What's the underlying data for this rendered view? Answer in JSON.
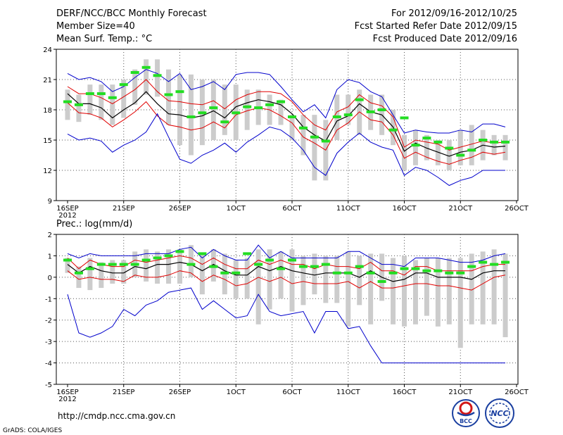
{
  "header": {
    "title": "DERF/NCC/BCC Monthly Forecast",
    "member_size": "Member Size=40",
    "variable": "Mean Surf. Temp.: °C",
    "period": "For 2012/09/16-2012/10/25",
    "fcst_started": "Fcst Started Refer Date 2012/09/15",
    "fcst_produced": "Fcst Produced Date 2012/09/16"
  },
  "footer": {
    "url": "http://cmdp.ncc.cma.gov.cn",
    "grads_credit": "GrADS: COLA/IGES",
    "logo_bcc_text": "BCC",
    "logo_ncc_text": "NCC"
  },
  "colors": {
    "envelope": "#0000cc",
    "spread": "#e00000",
    "mean": "#000000",
    "bar": "#cccccc",
    "obs": "#22dd22"
  },
  "chart_data": [
    {
      "type": "line",
      "name": "temperature",
      "title": "Mean Surf. Temp.: °C",
      "x_start_label": "2012",
      "x_tick_labels": [
        "16SEP",
        "21SEP",
        "26SEP",
        "1OCT",
        "6OCT",
        "11OCT",
        "16OCT",
        "21OCT",
        "26OCT"
      ],
      "x_tick_days": [
        0,
        5,
        10,
        15,
        20,
        25,
        30,
        35,
        40
      ],
      "x": [
        0,
        1,
        2,
        3,
        4,
        5,
        6,
        7,
        8,
        9,
        10,
        11,
        12,
        13,
        14,
        15,
        16,
        17,
        18,
        19,
        20,
        21,
        22,
        23,
        24,
        25,
        26,
        27,
        28,
        29,
        30,
        31,
        32,
        33,
        34,
        35,
        36,
        37,
        38,
        39
      ],
      "ylim": [
        9,
        24
      ],
      "yticks": [
        9,
        12,
        15,
        18,
        21,
        24
      ],
      "series": [
        {
          "name": "max",
          "values": [
            21.6,
            21.0,
            21.2,
            20.8,
            19.8,
            20.3,
            21.2,
            22.0,
            21.6,
            20.8,
            21.6,
            20.0,
            20.3,
            20.8,
            20.0,
            21.5,
            21.7,
            21.7,
            21.5,
            20.3,
            19.0,
            17.8,
            18.5,
            17.2,
            20.0,
            21.0,
            20.7,
            19.8,
            19.3,
            17.5,
            15.7,
            16.0,
            15.8,
            15.7,
            15.7,
            16.0,
            15.8,
            16.6,
            16.6,
            16.3
          ]
        },
        {
          "name": "upper",
          "values": [
            20.3,
            19.6,
            19.6,
            19.2,
            18.6,
            19.3,
            20.0,
            21.0,
            19.8,
            18.9,
            18.8,
            18.6,
            18.5,
            18.9,
            18.1,
            19.0,
            19.5,
            19.8,
            19.8,
            19.6,
            18.8,
            17.5,
            16.5,
            16.0,
            17.8,
            18.3,
            19.5,
            18.7,
            18.4,
            17.3,
            14.3,
            15.0,
            14.8,
            14.6,
            14.0,
            14.3,
            14.6,
            14.9,
            14.7,
            14.8
          ]
        },
        {
          "name": "mean",
          "values": [
            19.6,
            18.6,
            18.6,
            18.2,
            17.2,
            18.0,
            18.7,
            19.8,
            18.6,
            17.6,
            17.5,
            17.2,
            17.4,
            17.9,
            17.2,
            18.3,
            18.7,
            19.0,
            18.8,
            18.5,
            17.6,
            16.3,
            15.5,
            14.9,
            16.9,
            17.4,
            18.6,
            17.8,
            17.5,
            16.3,
            13.9,
            14.7,
            14.2,
            13.8,
            13.4,
            13.8,
            14.0,
            14.5,
            14.3,
            14.4
          ]
        },
        {
          "name": "lower",
          "values": [
            18.7,
            17.7,
            17.6,
            17.2,
            16.3,
            17.0,
            17.8,
            18.8,
            17.4,
            16.5,
            16.3,
            16.0,
            16.2,
            16.8,
            16.2,
            17.5,
            17.9,
            18.2,
            18.0,
            17.4,
            16.7,
            15.3,
            14.7,
            14.0,
            16.0,
            16.7,
            17.8,
            17.0,
            16.8,
            15.5,
            13.2,
            13.8,
            13.3,
            12.9,
            12.6,
            13.0,
            13.3,
            13.8,
            13.6,
            13.8
          ]
        },
        {
          "name": "min",
          "values": [
            15.6,
            15.0,
            15.2,
            14.9,
            13.8,
            14.5,
            15.0,
            15.8,
            17.6,
            15.3,
            13.1,
            12.7,
            13.5,
            14.0,
            14.7,
            13.8,
            14.8,
            15.5,
            16.3,
            16.0,
            15.2,
            14.0,
            12.3,
            11.5,
            13.7,
            14.8,
            15.7,
            14.8,
            14.3,
            14.0,
            11.5,
            12.3,
            12.0,
            11.3,
            10.5,
            11.0,
            11.3,
            12.0,
            12.0,
            12.0
          ]
        }
      ],
      "bars": {
        "name": "member-spread",
        "low": [
          17.0,
          16.8,
          17.5,
          17.0,
          16.5,
          17.2,
          18.5,
          19.5,
          19.3,
          16.5,
          14.5,
          13.5,
          14.5,
          15.0,
          15.5,
          15.0,
          16.0,
          16.5,
          16.5,
          16.5,
          15.0,
          13.5,
          11.0,
          11.0,
          15.0,
          16.5,
          15.5,
          16.0,
          15.5,
          14.5,
          12.0,
          12.5,
          13.0,
          12.5,
          12.0,
          12.5,
          12.5,
          13.0,
          13.5,
          13.0
        ],
        "high": [
          20.0,
          19.5,
          20.5,
          20.5,
          20.5,
          21.0,
          22.0,
          23.0,
          23.0,
          22.0,
          21.5,
          21.5,
          21.0,
          21.0,
          20.5,
          20.5,
          20.0,
          20.0,
          19.5,
          19.0,
          17.5,
          17.5,
          17.5,
          17.0,
          19.5,
          19.5,
          20.0,
          19.5,
          19.5,
          18.0,
          15.5,
          16.0,
          15.5,
          15.0,
          15.0,
          16.0,
          16.5,
          16.0,
          15.5,
          15.5
        ]
      },
      "obs": [
        18.8,
        18.5,
        19.6,
        19.6,
        19.2,
        20.5,
        21.7,
        22.2,
        21.4,
        19.5,
        19.8,
        17.3,
        17.7,
        18.2,
        16.8,
        17.7,
        18.3,
        18.2,
        18.5,
        18.8,
        17.3,
        16.2,
        15.3,
        14.9,
        17.3,
        17.5,
        19.0,
        17.8,
        18.0,
        16.0,
        17.2,
        14.5,
        15.2,
        14.8,
        14.2,
        13.5,
        14.0,
        15.0,
        14.8,
        14.8
      ]
    },
    {
      "type": "line",
      "name": "precipitation",
      "title": "Prec.: log(mm/d)",
      "x_start_label": "2012",
      "x_tick_labels": [
        "16SEP",
        "21SEP",
        "26SEP",
        "1OCT",
        "6OCT",
        "11OCT",
        "16OCT",
        "21OCT",
        "26OCT"
      ],
      "x_tick_days": [
        0,
        5,
        10,
        15,
        20,
        25,
        30,
        35,
        40
      ],
      "x": [
        0,
        1,
        2,
        3,
        4,
        5,
        6,
        7,
        8,
        9,
        10,
        11,
        12,
        13,
        14,
        15,
        16,
        17,
        18,
        19,
        20,
        21,
        22,
        23,
        24,
        25,
        26,
        27,
        28,
        29,
        30,
        31,
        32,
        33,
        34,
        35,
        36,
        37,
        38,
        39
      ],
      "ylim": [
        -5,
        2
      ],
      "yticks": [
        -5,
        -4,
        -3,
        -2,
        -1,
        0,
        1,
        2
      ],
      "series": [
        {
          "name": "max",
          "values": [
            1.1,
            0.9,
            1.1,
            1.0,
            1.0,
            1.0,
            1.0,
            1.1,
            1.1,
            1.1,
            1.3,
            1.4,
            0.9,
            1.3,
            1.0,
            0.8,
            0.8,
            1.5,
            0.9,
            1.2,
            0.9,
            0.9,
            0.9,
            0.9,
            0.9,
            1.2,
            1.2,
            0.9,
            0.6,
            0.6,
            0.5,
            0.9,
            0.9,
            0.9,
            0.8,
            0.7,
            0.7,
            0.8,
            1.0,
            1.1
          ]
        },
        {
          "name": "upper",
          "values": [
            0.9,
            0.4,
            0.8,
            0.6,
            0.5,
            0.5,
            0.8,
            0.7,
            0.8,
            0.9,
            1.0,
            0.9,
            0.6,
            0.9,
            0.6,
            0.4,
            0.4,
            0.8,
            0.6,
            0.8,
            0.6,
            0.6,
            0.4,
            0.6,
            0.5,
            0.5,
            0.4,
            0.7,
            0.3,
            0.3,
            0.1,
            0.5,
            0.5,
            0.3,
            0.3,
            0.3,
            0.3,
            0.5,
            0.6,
            0.6
          ]
        },
        {
          "name": "mean",
          "values": [
            0.6,
            0.2,
            0.5,
            0.3,
            0.2,
            0.2,
            0.5,
            0.4,
            0.6,
            0.6,
            0.7,
            0.6,
            0.3,
            0.6,
            0.3,
            0.1,
            0.1,
            0.5,
            0.3,
            0.5,
            0.3,
            0.2,
            0.1,
            0.2,
            0.2,
            0.2,
            0.0,
            0.3,
            0.0,
            -0.2,
            -0.1,
            0.2,
            0.2,
            0.0,
            0.0,
            0.0,
            -0.1,
            0.2,
            0.3,
            0.3
          ]
        },
        {
          "name": "lower",
          "values": [
            0.3,
            -0.1,
            0.0,
            -0.1,
            -0.1,
            -0.2,
            0.1,
            0.0,
            0.0,
            0.1,
            0.3,
            0.2,
            -0.2,
            0.1,
            -0.1,
            -0.4,
            -0.3,
            0.0,
            -0.2,
            0.0,
            -0.3,
            -0.2,
            -0.3,
            -0.3,
            -0.3,
            -0.2,
            -0.5,
            -0.2,
            -0.5,
            -0.5,
            -0.4,
            -0.3,
            -0.3,
            -0.4,
            -0.4,
            -0.5,
            -0.6,
            -0.3,
            0.0,
            0.1
          ]
        },
        {
          "name": "min",
          "values": [
            -0.8,
            -2.6,
            -2.8,
            -2.6,
            -2.3,
            -1.5,
            -1.8,
            -1.3,
            -1.1,
            -0.7,
            -0.6,
            -0.5,
            -1.5,
            -1.1,
            -1.5,
            -1.9,
            -1.8,
            -0.8,
            -1.6,
            -1.8,
            -1.7,
            -1.6,
            -2.6,
            -1.6,
            -1.6,
            -2.4,
            -2.3,
            -3.2,
            -4.0,
            -4.0,
            -4.0,
            -4.0,
            -4.0,
            -4.0,
            -4.0,
            -4.0,
            -4.0,
            -4.0,
            -4.0,
            -4.0
          ]
        }
      ],
      "bars": {
        "name": "member-spread",
        "low": [
          0.2,
          -0.5,
          -0.6,
          -0.5,
          -0.3,
          -0.3,
          0.0,
          -0.2,
          -0.3,
          -0.3,
          -0.3,
          0.0,
          -0.8,
          -0.2,
          -0.8,
          -1.0,
          -1.0,
          -2.2,
          -1.5,
          -1.0,
          -1.6,
          -1.3,
          -0.8,
          -1.2,
          -1.2,
          -2.3,
          -1.3,
          -2.2,
          -1.1,
          -2.2,
          -2.3,
          -2.2,
          -1.8,
          -2.3,
          -2.2,
          -3.3,
          -2.2,
          -2.2,
          -2.2,
          -2.8
        ],
        "high": [
          0.9,
          0.5,
          0.9,
          0.7,
          0.8,
          0.8,
          1.2,
          1.3,
          1.2,
          1.3,
          1.3,
          1.5,
          1.1,
          1.3,
          1.1,
          0.8,
          0.9,
          1.3,
          1.3,
          1.2,
          1.3,
          1.0,
          1.1,
          1.0,
          1.0,
          1.2,
          1.0,
          1.1,
          1.1,
          0.9,
          1.0,
          0.8,
          0.9,
          0.9,
          0.9,
          0.9,
          1.1,
          1.2,
          1.3,
          1.1
        ]
      },
      "obs": [
        0.8,
        0.2,
        0.4,
        0.6,
        0.6,
        0.6,
        0.6,
        0.8,
        0.9,
        1.0,
        1.2,
        0.6,
        1.1,
        0.5,
        0.2,
        0.2,
        1.1,
        0.6,
        0.8,
        0.4,
        0.8,
        0.5,
        0.5,
        0.6,
        0.2,
        0.2,
        0.5,
        0.2,
        -0.2,
        0.2,
        0.4,
        0.4,
        0.3,
        0.3,
        0.2,
        0.2,
        0.5,
        0.7,
        0.6,
        0.7
      ]
    }
  ]
}
